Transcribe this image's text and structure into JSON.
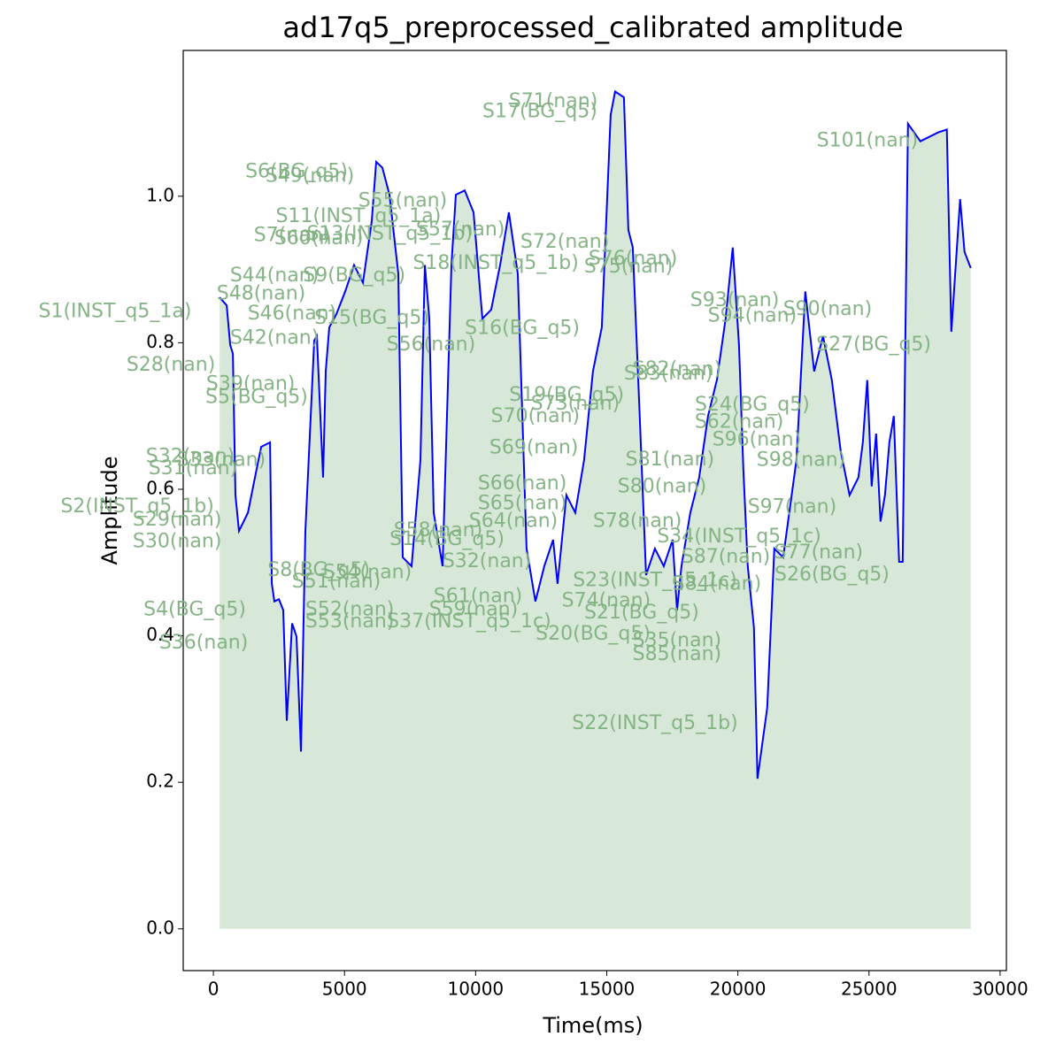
{
  "chart_data": {
    "type": "line",
    "title": "ad17q5_preprocessed_calibrated amplitude",
    "x_label": "Time(ms)",
    "y_label": "Amplitude",
    "xlim": [
      -1150,
      30240
    ],
    "ylim": [
      -0.057,
      1.199
    ],
    "xticks": [
      0,
      5000,
      10000,
      15000,
      20000,
      25000,
      30000
    ],
    "yticks": [
      {
        "value": 0,
        "label": "0.0"
      },
      {
        "value": 0.2,
        "label": "0.2"
      },
      {
        "value": 0.4,
        "label": "0.4"
      },
      {
        "value": 0.6,
        "label": "0.6"
      },
      {
        "value": 0.8,
        "label": "0.8"
      },
      {
        "value": 1,
        "label": "1.0"
      }
    ],
    "fill_color": "#8fbc8f",
    "x": [
      236,
      506,
      641,
      742,
      843,
      978,
      1316,
      1653,
      1822,
      2160,
      2227,
      2328,
      2497,
      2665,
      2800,
      3003,
      3172,
      3340,
      3509,
      3846,
      3948,
      4184,
      4285,
      4420,
      4690,
      5027,
      5365,
      5702,
      6039,
      6208,
      6444,
      6714,
      7052,
      7220,
      7558,
      7895,
      8064,
      8233,
      8401,
      8739,
      9076,
      9245,
      9582,
      9920,
      10257,
      10594,
      10932,
      11269,
      11607,
      11944,
      12281,
      12619,
      12956,
      13125,
      13463,
      13800,
      14137,
      14475,
      14812,
      15149,
      15318,
      15655,
      15824,
      15993,
      16229,
      16499,
      16836,
      17174,
      17511,
      17680,
      17848,
      18186,
      18523,
      18861,
      19198,
      19535,
      19805,
      20042,
      20210,
      20379,
      20615,
      20750,
      21121,
      21391,
      21728,
      22235,
      22572,
      22909,
      23247,
      23584,
      23921,
      24259,
      24596,
      24765,
      24933,
      25102,
      25271,
      25440,
      25609,
      25777,
      25946,
      26149,
      26283,
      26486,
      26958,
      27633,
      27970,
      28139,
      28476,
      28645,
      28881
    ],
    "series": [
      {
        "color": "#0000ff",
        "values": [
          0.862,
          0.851,
          0.797,
          0.785,
          0.592,
          0.543,
          0.568,
          0.628,
          0.658,
          0.664,
          0.471,
          0.447,
          0.45,
          0.435,
          0.284,
          0.417,
          0.399,
          0.242,
          0.543,
          0.803,
          0.809,
          0.616,
          0.761,
          0.821,
          0.839,
          0.87,
          0.906,
          0.882,
          0.966,
          1.047,
          1.039,
          1.002,
          0.894,
          0.507,
          0.495,
          0.64,
          0.906,
          0.833,
          0.568,
          0.495,
          0.906,
          1.002,
          1.008,
          0.978,
          0.833,
          0.845,
          0.906,
          0.978,
          0.894,
          0.519,
          0.447,
          0.495,
          0.531,
          0.471,
          0.592,
          0.568,
          0.64,
          0.761,
          0.821,
          1.111,
          1.143,
          1.135,
          0.954,
          0.93,
          0.725,
          0.483,
          0.519,
          0.495,
          0.531,
          0.435,
          0.495,
          0.568,
          0.616,
          0.7,
          0.749,
          0.833,
          0.93,
          0.797,
          0.628,
          0.495,
          0.411,
          0.205,
          0.302,
          0.519,
          0.507,
          0.64,
          0.87,
          0.761,
          0.809,
          0.749,
          0.652,
          0.592,
          0.616,
          0.664,
          0.749,
          0.604,
          0.676,
          0.556,
          0.592,
          0.664,
          0.7,
          0.501,
          0.501,
          1.099,
          1.075,
          1.087,
          1.091,
          0.815,
          0.996,
          0.924,
          0.902
        ]
      }
    ],
    "annotations": [
      {
        "text": "S71(nan)",
        "x": 12960,
        "y": 1.129
      },
      {
        "text": "S17(BG_q5)",
        "x": 12450,
        "y": 1.115
      },
      {
        "text": "S101(nan)",
        "x": 24940,
        "y": 1.075
      },
      {
        "text": "S6(BG_q5)",
        "x": 3170,
        "y": 1.033
      },
      {
        "text": "S49(nan)",
        "x": 3680,
        "y": 1.027
      },
      {
        "text": "S55(nan)",
        "x": 7220,
        "y": 0.993
      },
      {
        "text": "S11(INST_q5_1a)",
        "x": 5530,
        "y": 0.972
      },
      {
        "text": "S57(nan)",
        "x": 9420,
        "y": 0.954
      },
      {
        "text": "S7(nan)",
        "x": 3000,
        "y": 0.946
      },
      {
        "text": "S60(nan)",
        "x": 4020,
        "y": 0.942
      },
      {
        "text": "S13(INST_q5_1b)",
        "x": 6720,
        "y": 0.948
      },
      {
        "text": "S72(nan)",
        "x": 13400,
        "y": 0.937
      },
      {
        "text": "S18(INST_q5_1b)",
        "x": 10770,
        "y": 0.908
      },
      {
        "text": "S76(nan)",
        "x": 16000,
        "y": 0.914
      },
      {
        "text": "S75(nan)",
        "x": 15830,
        "y": 0.903
      },
      {
        "text": "S44(nan)",
        "x": 2330,
        "y": 0.891
      },
      {
        "text": "S9(BG_q5)",
        "x": 5370,
        "y": 0.891
      },
      {
        "text": "S93(nan)",
        "x": 19880,
        "y": 0.857
      },
      {
        "text": "S90(nan)",
        "x": 23420,
        "y": 0.845
      },
      {
        "text": "S94(nan)",
        "x": 20550,
        "y": 0.836
      },
      {
        "text": "S1(INST_q5_1a)",
        "x": -3750,
        "y": 0.842
      },
      {
        "text": "S48(nan)",
        "x": 1820,
        "y": 0.866
      },
      {
        "text": "S46(nan)",
        "x": 3000,
        "y": 0.839
      },
      {
        "text": "S15(BG_q5)",
        "x": 6040,
        "y": 0.833
      },
      {
        "text": "S16(BG_q5)",
        "x": 11780,
        "y": 0.819
      },
      {
        "text": "S42(nan)",
        "x": 2330,
        "y": 0.806
      },
      {
        "text": "S56(nan)",
        "x": 8300,
        "y": 0.797
      },
      {
        "text": "S27(BG_q5)",
        "x": 25180,
        "y": 0.797
      },
      {
        "text": "S28(nan)",
        "x": -1620,
        "y": 0.769
      },
      {
        "text": "S82(nan)",
        "x": 17680,
        "y": 0.763
      },
      {
        "text": "S83(nan)",
        "x": 17350,
        "y": 0.757
      },
      {
        "text": "S39(nan)",
        "x": 1420,
        "y": 0.743
      },
      {
        "text": "S5(BG_q5)",
        "x": 1650,
        "y": 0.725
      },
      {
        "text": "S19(BG_q5)",
        "x": 13470,
        "y": 0.728
      },
      {
        "text": "S73(nan)",
        "x": 13800,
        "y": 0.716
      },
      {
        "text": "S24(BG_q5)",
        "x": 20550,
        "y": 0.715
      },
      {
        "text": "S70(nan)",
        "x": 12280,
        "y": 0.699
      },
      {
        "text": "S62(nan)",
        "x": 20050,
        "y": 0.691
      },
      {
        "text": "S96(nan)",
        "x": 20720,
        "y": 0.667
      },
      {
        "text": "S69(nan)",
        "x": 12220,
        "y": 0.656
      },
      {
        "text": "S81(nan)",
        "x": 17410,
        "y": 0.64
      },
      {
        "text": "S98(nan)",
        "x": 22410,
        "y": 0.639
      },
      {
        "text": "S32(nan)",
        "x": -880,
        "y": 0.644
      },
      {
        "text": "S33(nan)",
        "x": 300,
        "y": 0.639
      },
      {
        "text": "S31(nan)",
        "x": -780,
        "y": 0.628
      },
      {
        "text": "S66(nan)",
        "x": 11780,
        "y": 0.607
      },
      {
        "text": "S80(nan)",
        "x": 17110,
        "y": 0.603
      },
      {
        "text": "S65(nan)",
        "x": 11780,
        "y": 0.58
      },
      {
        "text": "S2(INST_q5_1b)",
        "x": -2900,
        "y": 0.576
      },
      {
        "text": "S97(nan)",
        "x": 22070,
        "y": 0.575
      },
      {
        "text": "S29(nan)",
        "x": -1380,
        "y": 0.558
      },
      {
        "text": "S64(nan)",
        "x": 11440,
        "y": 0.556
      },
      {
        "text": "S78(nan)",
        "x": 16170,
        "y": 0.556
      },
      {
        "text": "S30(nan)",
        "x": -1380,
        "y": 0.528
      },
      {
        "text": "S58(nan)",
        "x": 8570,
        "y": 0.543
      },
      {
        "text": "S14(BG_q5)",
        "x": 8910,
        "y": 0.531
      },
      {
        "text": "S34(INST_q5_1c)",
        "x": 20050,
        "y": 0.535
      },
      {
        "text": "S77(nan)",
        "x": 23080,
        "y": 0.513
      },
      {
        "text": "S87(nan)",
        "x": 19540,
        "y": 0.507
      },
      {
        "text": "S26(BG_q5)",
        "x": 23590,
        "y": 0.483
      },
      {
        "text": "S32(nan)",
        "x": 10430,
        "y": 0.501
      },
      {
        "text": "S8(BG_q5)",
        "x": 4020,
        "y": 0.489
      },
      {
        "text": "S54(nan)",
        "x": 5870,
        "y": 0.486
      },
      {
        "text": "S51(nan)",
        "x": 4690,
        "y": 0.473
      },
      {
        "text": "S23(INST_q5_1c)",
        "x": 16840,
        "y": 0.475
      },
      {
        "text": "S84(nan)",
        "x": 19200,
        "y": 0.47
      },
      {
        "text": "S61(nan)",
        "x": 10090,
        "y": 0.453
      },
      {
        "text": "S74(nan)",
        "x": 14980,
        "y": 0.447
      },
      {
        "text": "S4(BG_q5)",
        "x": -710,
        "y": 0.435
      },
      {
        "text": "S52(nan)",
        "x": 5200,
        "y": 0.435
      },
      {
        "text": "S59(nan)",
        "x": 9920,
        "y": 0.435
      },
      {
        "text": "S21(BG_q5)",
        "x": 16330,
        "y": 0.431
      },
      {
        "text": "S53(nan)",
        "x": 5200,
        "y": 0.419
      },
      {
        "text": "S37(INST_q5_1c)",
        "x": 9750,
        "y": 0.419
      },
      {
        "text": "S20(BG_q5)",
        "x": 14480,
        "y": 0.402
      },
      {
        "text": "S35(nan)",
        "x": 17680,
        "y": 0.393
      },
      {
        "text": "S36(nan)",
        "x": -370,
        "y": 0.39
      },
      {
        "text": "S85(nan)",
        "x": 17680,
        "y": 0.374
      },
      {
        "text": "S22(INST_q5_1b)",
        "x": 16840,
        "y": 0.28
      }
    ]
  }
}
